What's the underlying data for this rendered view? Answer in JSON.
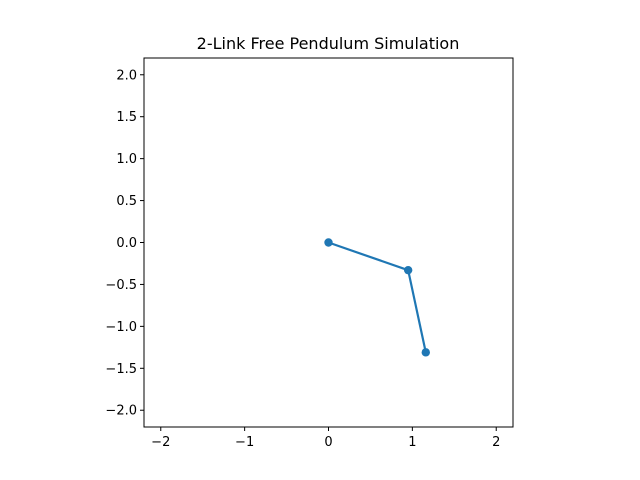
{
  "chart_data": {
    "type": "line",
    "title": "2-Link Free Pendulum Simulation",
    "xlabel": "",
    "ylabel": "",
    "xlim": [
      -2.2,
      2.2
    ],
    "ylim": [
      -2.2,
      2.2
    ],
    "x_ticks": [
      -2,
      -1,
      0,
      1,
      2
    ],
    "x_tick_labels": [
      "−2",
      "−1",
      "0",
      "1",
      "2"
    ],
    "y_ticks": [
      2.0,
      1.5,
      1.0,
      0.5,
      0.0,
      -0.5,
      -1.0,
      -1.5,
      -2.0
    ],
    "y_tick_labels": [
      "2.0",
      "1.5",
      "1.0",
      "0.5",
      "0.0",
      "−0.5",
      "−1.0",
      "−1.5",
      "−2.0"
    ],
    "grid": false,
    "series": [
      {
        "x": [
          0.0,
          0.95,
          1.16
        ],
        "y": [
          0.0,
          -0.33,
          -1.31
        ],
        "color": "#1f77b4",
        "marker": "circle"
      }
    ]
  }
}
